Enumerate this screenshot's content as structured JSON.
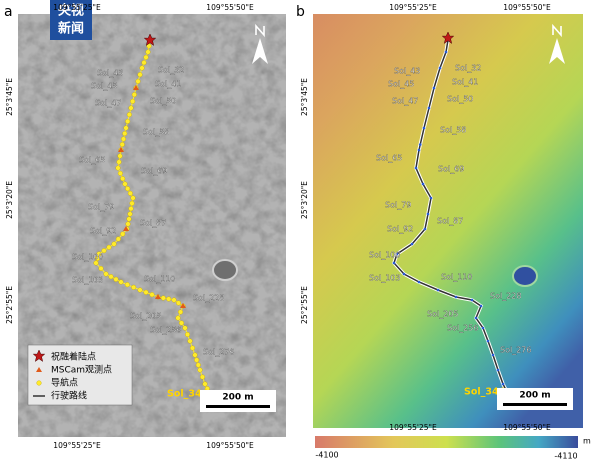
{
  "logo": [
    "央视",
    "新闻"
  ],
  "panels": [
    {
      "label": "a"
    },
    {
      "label": "b"
    }
  ],
  "lon_labels": [
    "109°55'25\"E",
    "109°55'50\"E"
  ],
  "lat_labels": [
    "25°3'45\"E",
    "25°3'20\"E",
    "25°2'55\"E"
  ],
  "sol_labels": [
    "Sol_43",
    "Sol_32",
    "Sol_45",
    "Sol_41",
    "Sol_47",
    "Sol_50",
    "Sol_58",
    "Sol_65",
    "Sol_69",
    "Sol_79",
    "Sol_87",
    "Sol_92",
    "Sol_100",
    "Sol_103",
    "Sol_110",
    "Sol_228",
    "Sol_205",
    "Sol_256",
    "Sol_276",
    "Sol_344"
  ],
  "legend": [
    "祝融着陆点",
    "MSCam观测点",
    "导航点",
    "行驶路线"
  ],
  "scale_bar": "200 m",
  "colorbar": {
    "min_label": "-4100",
    "max_label": "-4110",
    "unit": "m"
  }
}
